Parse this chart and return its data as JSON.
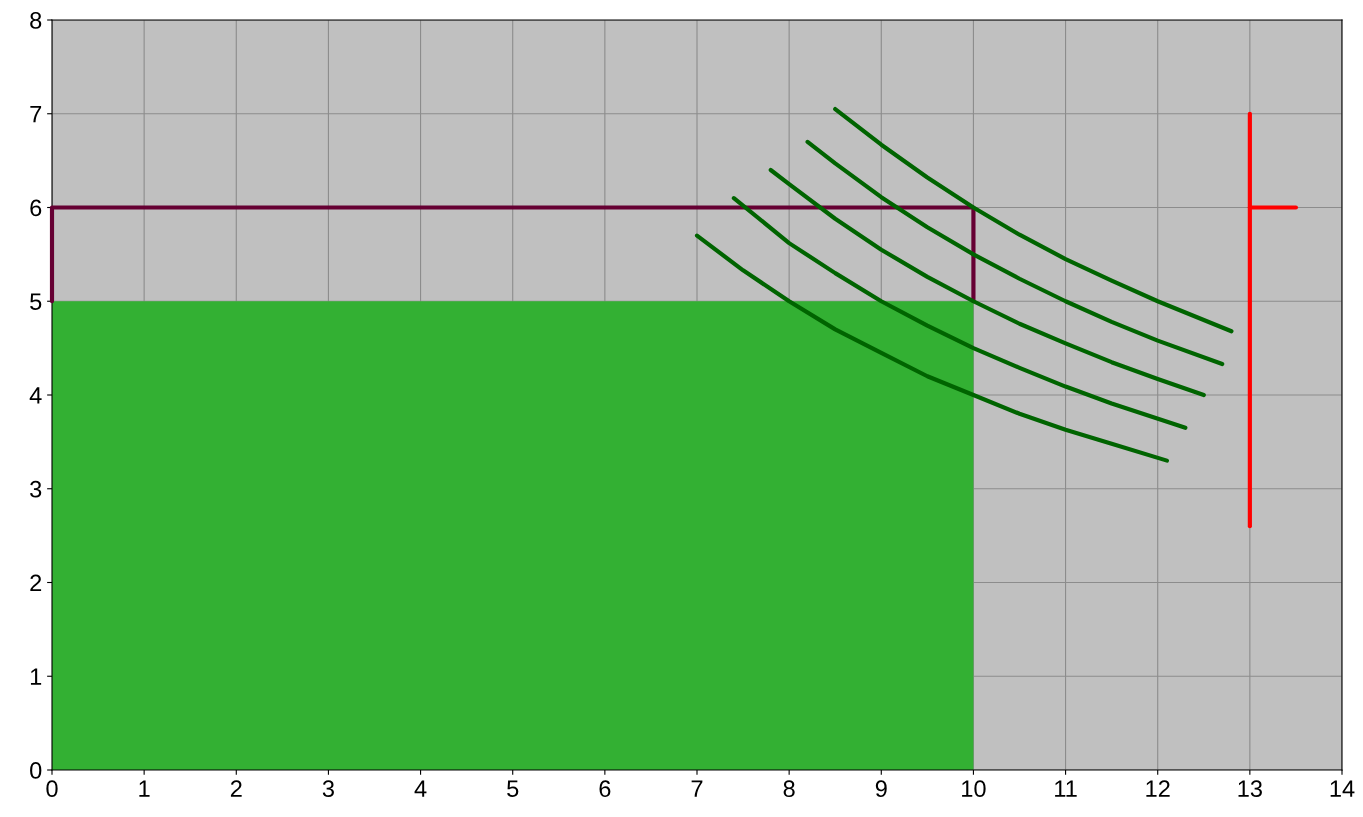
{
  "chart_data": {
    "type": "line",
    "xlim": [
      0,
      14
    ],
    "ylim": [
      0,
      8
    ],
    "xticks": [
      0,
      1,
      2,
      3,
      4,
      5,
      6,
      7,
      8,
      9,
      10,
      11,
      12,
      13,
      14
    ],
    "yticks": [
      0,
      1,
      2,
      3,
      4,
      5,
      6,
      7,
      8
    ],
    "grid": true,
    "legend": false,
    "marker": "none",
    "line_style": "solid",
    "series": [
      {
        "type": "area",
        "color": "#33b033",
        "x": [
          0,
          10
        ],
        "values": [
          5,
          5
        ]
      },
      {
        "color": "#660033",
        "x": [
          0,
          0,
          10,
          10
        ],
        "values": [
          5,
          6,
          6,
          5
        ]
      },
      {
        "color": "#006400",
        "x": [
          7,
          7.5,
          8,
          8.5,
          9,
          9.5,
          10,
          10.5,
          11,
          11.5,
          12.1
        ],
        "values": [
          5.7,
          5.33,
          5.0,
          4.7,
          4.45,
          4.2,
          4.0,
          3.8,
          3.63,
          3.48,
          3.3
        ]
      },
      {
        "color": "#006400",
        "x": [
          7.4,
          8,
          8.5,
          9,
          9.5,
          10,
          10.5,
          11,
          11.5,
          12.3
        ],
        "values": [
          6.1,
          5.62,
          5.3,
          5.0,
          4.74,
          4.5,
          4.29,
          4.09,
          3.91,
          3.65
        ]
      },
      {
        "color": "#006400",
        "x": [
          7.8,
          8,
          8.5,
          9,
          9.5,
          10,
          10.5,
          11,
          11.5,
          12,
          12.5
        ],
        "values": [
          6.4,
          6.25,
          5.88,
          5.55,
          5.26,
          5.0,
          4.76,
          4.55,
          4.35,
          4.17,
          4.0
        ]
      },
      {
        "color": "#006400",
        "x": [
          8.2,
          8.5,
          9,
          9.5,
          10,
          10.5,
          11,
          11.5,
          12,
          12.7
        ],
        "values": [
          6.7,
          6.47,
          6.11,
          5.79,
          5.5,
          5.24,
          5.0,
          4.78,
          4.58,
          4.33
        ]
      },
      {
        "color": "#006400",
        "x": [
          8.5,
          9,
          9.5,
          10,
          10.5,
          11,
          11.5,
          12,
          12.8
        ],
        "values": [
          7.05,
          6.67,
          6.32,
          6.0,
          5.71,
          5.45,
          5.22,
          5.0,
          4.68
        ]
      },
      {
        "color": "#ff0000",
        "x": [
          13,
          13
        ],
        "values": [
          2.6,
          7.0
        ]
      },
      {
        "color": "#ff0000",
        "x": [
          13,
          13.5
        ],
        "values": [
          6,
          6
        ]
      }
    ]
  }
}
